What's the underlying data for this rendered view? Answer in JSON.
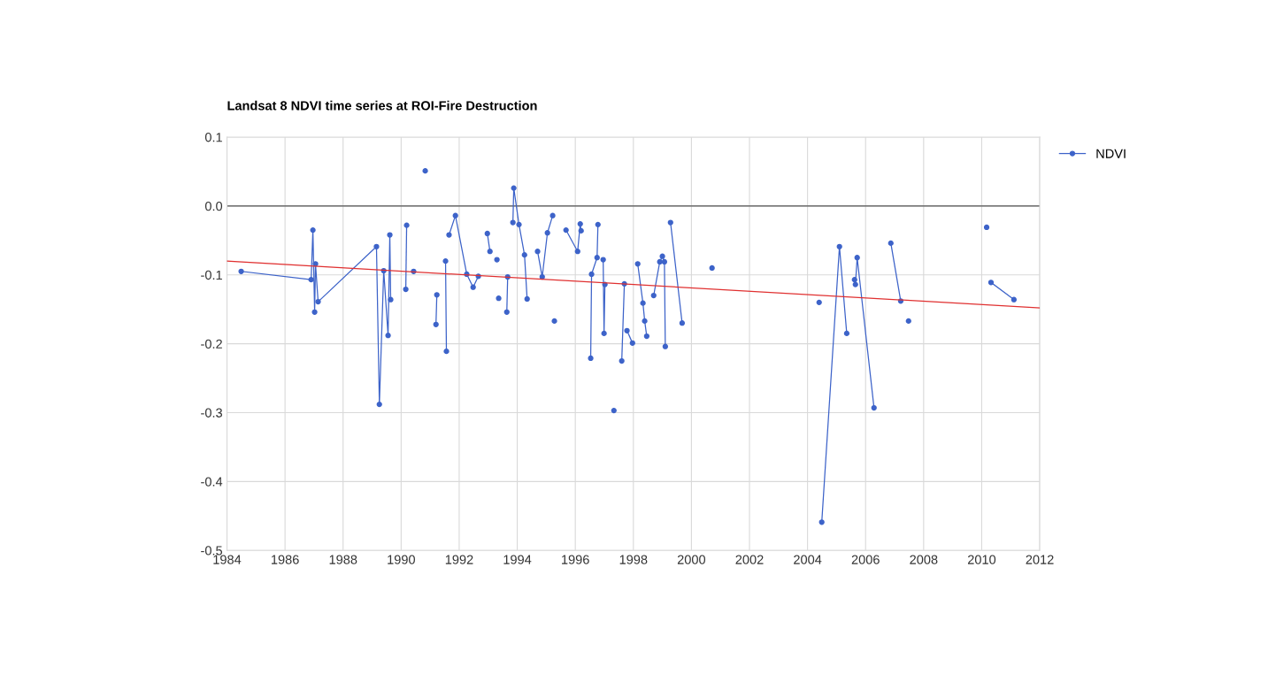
{
  "chart_data": {
    "type": "line",
    "title": "Landsat 8 NDVI time series at ROI-Fire Destruction",
    "xlim": [
      1984,
      2012
    ],
    "xticks": [
      1984,
      1986,
      1988,
      1990,
      1992,
      1994,
      1996,
      1998,
      2000,
      2002,
      2004,
      2006,
      2008,
      2010,
      2012
    ],
    "ylim": [
      -0.5,
      0.1
    ],
    "yticks": [
      {
        "value": -0.5,
        "label": "-0.5"
      },
      {
        "value": -0.4,
        "label": "-0.4"
      },
      {
        "value": -0.3,
        "label": "-0.3"
      },
      {
        "value": -0.2,
        "label": "-0.2"
      },
      {
        "value": -0.1,
        "label": "-0.1"
      },
      {
        "value": 0,
        "label": "0.0"
      },
      {
        "value": 0.1,
        "label": "0.1"
      }
    ],
    "grid": true,
    "legend": "top right",
    "marker": "circle",
    "line_style": "solid",
    "ref_lines": [
      {
        "axis": "y",
        "value": 0,
        "color": "#555555"
      }
    ],
    "series": [
      {
        "name": "NDVI",
        "color": "#3d63c9",
        "x": [
          1984.49,
          1986.9,
          1986.96,
          1987.02,
          1987.05,
          1987.14,
          1989.15,
          1989.25,
          1989.4,
          1989.55,
          1989.61,
          1989.64
        ],
        "values": [
          -0.095,
          -0.107,
          -0.035,
          -0.154,
          -0.084,
          -0.139,
          -0.059,
          -0.288,
          -0.094,
          -0.188,
          -0.042,
          -0.136
        ]
      },
      {
        "color": "#3d63c9",
        "x": [
          1990.16,
          1990.19
        ],
        "values": [
          -0.121,
          -0.028
        ]
      },
      {
        "color": "#3d63c9",
        "x": [
          1990.43
        ],
        "values": [
          -0.095
        ]
      },
      {
        "color": "#3d63c9",
        "x": [
          1990.83
        ],
        "values": [
          0.051
        ]
      },
      {
        "color": "#3d63c9",
        "x": [
          1991.2,
          1991.23
        ],
        "values": [
          -0.172,
          -0.129
        ]
      },
      {
        "color": "#3d63c9",
        "x": [
          1991.53,
          1991.56
        ],
        "values": [
          -0.08,
          -0.211
        ]
      },
      {
        "color": "#3d63c9",
        "x": [
          1991.65,
          1991.87,
          1992.26,
          1992.48,
          1992.66
        ],
        "values": [
          -0.042,
          -0.014,
          -0.099,
          -0.118,
          -0.102
        ]
      },
      {
        "color": "#3d63c9",
        "x": [
          1992.97,
          1993.06
        ],
        "values": [
          -0.04,
          -0.066
        ]
      },
      {
        "color": "#3d63c9",
        "x": [
          1993.3
        ],
        "values": [
          -0.078
        ]
      },
      {
        "color": "#3d63c9",
        "x": [
          1993.36
        ],
        "values": [
          -0.134
        ]
      },
      {
        "color": "#3d63c9",
        "x": [
          1993.64,
          1993.67
        ],
        "values": [
          -0.154,
          -0.103
        ]
      },
      {
        "color": "#3d63c9",
        "x": [
          1993.85,
          1993.88,
          1994.06,
          1994.25,
          1994.34
        ],
        "values": [
          -0.024,
          0.026,
          -0.027,
          -0.071,
          -0.135
        ]
      },
      {
        "color": "#3d63c9",
        "x": [
          1994.7,
          1994.86,
          1995.04,
          1995.22
        ],
        "values": [
          -0.066,
          -0.103,
          -0.039,
          -0.014
        ]
      },
      {
        "color": "#3d63c9",
        "x": [
          1995.28
        ],
        "values": [
          -0.167
        ]
      },
      {
        "color": "#3d63c9",
        "x": [
          1995.68,
          1996.08,
          1996.17,
          1996.2
        ],
        "values": [
          -0.035,
          -0.066,
          -0.026,
          -0.036
        ]
      },
      {
        "color": "#3d63c9",
        "x": [
          1996.53,
          1996.56,
          1996.75,
          1996.78
        ],
        "values": [
          -0.221,
          -0.099,
          -0.075,
          -0.027
        ]
      },
      {
        "color": "#3d63c9",
        "x": [
          1996.96,
          1996.99,
          1997.02
        ],
        "values": [
          -0.078,
          -0.185,
          -0.114
        ]
      },
      {
        "color": "#3d63c9",
        "x": [
          1997.33
        ],
        "values": [
          -0.297
        ]
      },
      {
        "color": "#3d63c9",
        "x": [
          1997.6,
          1997.69
        ],
        "values": [
          -0.225,
          -0.113
        ]
      },
      {
        "color": "#3d63c9",
        "x": [
          1997.78,
          1997.97
        ],
        "values": [
          -0.181,
          -0.199
        ]
      },
      {
        "color": "#3d63c9",
        "x": [
          1998.15,
          1998.33,
          1998.39,
          1998.46
        ],
        "values": [
          -0.084,
          -0.141,
          -0.167,
          -0.189
        ]
      },
      {
        "color": "#3d63c9",
        "x": [
          1998.7,
          1998.91,
          1999.0,
          1999.07,
          1999.1
        ],
        "values": [
          -0.13,
          -0.081,
          -0.073,
          -0.081,
          -0.204
        ]
      },
      {
        "color": "#3d63c9",
        "x": [
          1999.28,
          1999.68
        ],
        "values": [
          -0.024,
          -0.17
        ]
      },
      {
        "color": "#3d63c9",
        "x": [
          2000.71
        ],
        "values": [
          -0.09
        ]
      },
      {
        "color": "#3d63c9",
        "x": [
          2004.4
        ],
        "values": [
          -0.14
        ]
      },
      {
        "color": "#3d63c9",
        "x": [
          2004.49,
          2005.1,
          2005.35
        ],
        "values": [
          -0.459,
          -0.059,
          -0.185
        ]
      },
      {
        "color": "#3d63c9",
        "x": [
          2005.62,
          2005.65,
          2005.71,
          2006.29
        ],
        "values": [
          -0.107,
          -0.114,
          -0.075,
          -0.293
        ]
      },
      {
        "color": "#3d63c9",
        "x": [
          2006.87,
          2007.21
        ],
        "values": [
          -0.054,
          -0.138
        ]
      },
      {
        "color": "#3d63c9",
        "x": [
          2007.48
        ],
        "values": [
          -0.167
        ]
      },
      {
        "color": "#3d63c9",
        "x": [
          2010.17
        ],
        "values": [
          -0.031
        ]
      },
      {
        "color": "#3d63c9",
        "x": [
          2010.32,
          2011.11
        ],
        "values": [
          -0.111,
          -0.136
        ]
      },
      {
        "type": "line",
        "color": "#e03030",
        "marker": "none",
        "x": [
          1984,
          2012
        ],
        "values": [
          -0.08,
          -0.148
        ]
      }
    ]
  }
}
